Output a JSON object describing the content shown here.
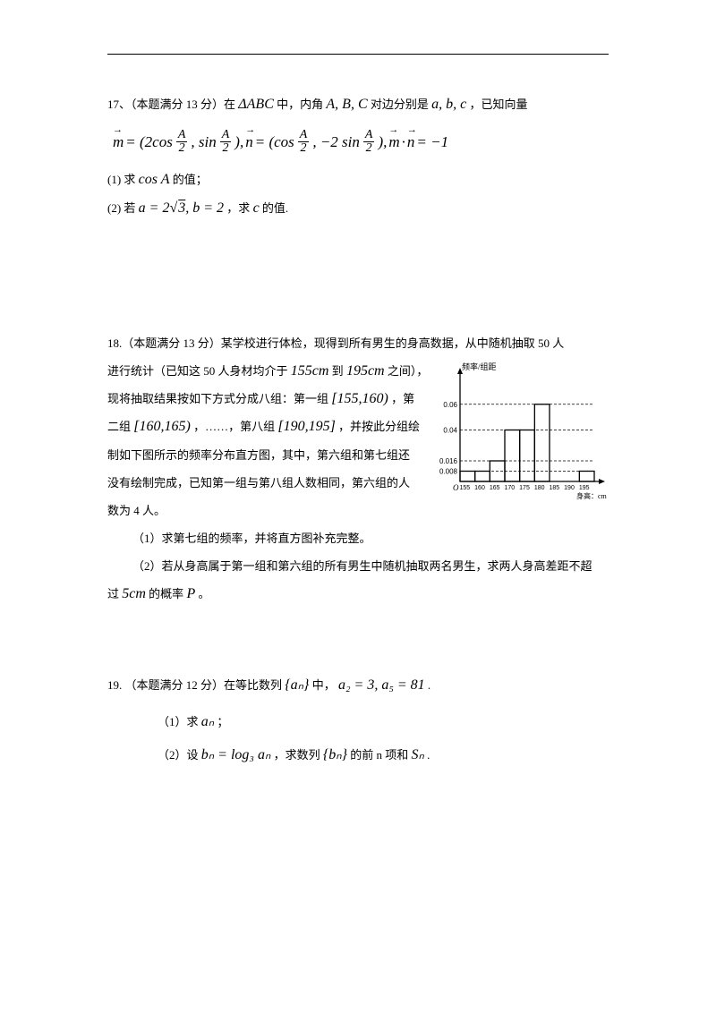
{
  "q17": {
    "header_a": "17、（本题满分 13 分）在",
    "header_b": "中，内角",
    "header_c": "对边分别是",
    "header_d": "，已知向量",
    "tri": "ΔABC",
    "angles": "A, B, C",
    "sides": "a, b, c",
    "eq_open": "= (2cos",
    "eq_mid1": ", sin",
    "eq_mid2": "),",
    "eq_mid3": "= (cos",
    "eq_mid4": ", −2 sin",
    "eq_mid5": "),",
    "eq_dot": "·",
    "eq_rhs": "= −1",
    "p1_a": "(1) 求",
    "p1_b": "cos A",
    "p1_c": "的值；",
    "p2_a": "(2) 若",
    "p2_eq": "a = 2√3, b = 2",
    "p2_b": "，求",
    "p2_c": "c",
    "p2_d": "的值."
  },
  "q18": {
    "l1": "18.（本题满分 13 分）某学校进行体检，现得到所有男生的身高数据，从中随机抽取 50 人",
    "l2a": "进行统计（已知这 50 人身材均介于",
    "l2b": "155cm",
    "l2c": "到",
    "l2d": "195cm",
    "l2e": "之间），",
    "l3a": "现将抽取结果按如下方式分成八组：第一组",
    "l3b": "[155,160)",
    "l3c": "，第",
    "l4a": "二组",
    "l4b": "[160,165)",
    "l4c": "，……，第八组",
    "l4d": "[190,195]",
    "l4e": "，并按此分组绘",
    "l5": "制如下图所示的频率分布直方图，其中，第六组和第七组还",
    "l6": "没有绘制完成，已知第一组与第八组人数相同，第六组的人",
    "l7": "数为 4 人。",
    "p1": "（1）求第七组的频率，并将直方图补充完整。",
    "p2a": "（2）若从身高属于第一组和第六组的所有男生中随机抽取两名男生，求两人身高差距不超",
    "p2b_a": "过",
    "p2b_b": "5cm",
    "p2b_c": "的概率",
    "p2b_d": "P",
    "p2b_e": "。"
  },
  "q19": {
    "l1a": "19.  （本题满分 12 分）在等比数列",
    "l1b": "{aₙ}",
    "l1c": "中，",
    "l1d": "a₂ = 3, a₅ = 81",
    "l1e": ".",
    "p1a": "（1）求",
    "p1b": "aₙ",
    "p1c": "；",
    "p2a": "（2）设",
    "p2b": "bₙ = log₃ aₙ",
    "p2c": "，求数列",
    "p2d": "{bₙ}",
    "p2e": "的前 n 项和",
    "p2f": "Sₙ",
    "p2g": "."
  },
  "chart": {
    "ylabel": "频率/组距",
    "xlabel": "身高：cm",
    "yticks": [
      "0.008",
      "0.016",
      "0.04",
      "0.06"
    ],
    "ytick_pos": [
      0.1,
      0.2,
      0.5,
      0.75
    ],
    "xticks": [
      "155",
      "160",
      "165",
      "170",
      "175",
      "180",
      "185",
      "190",
      "195"
    ],
    "bars": [
      0.1,
      0.1,
      0.2,
      0.5,
      0.5,
      0.75,
      0,
      0,
      0.1
    ],
    "bar_last_index": 8,
    "axis_color": "#000000",
    "grid_dash": "3,2",
    "bg": "#ffffff"
  }
}
